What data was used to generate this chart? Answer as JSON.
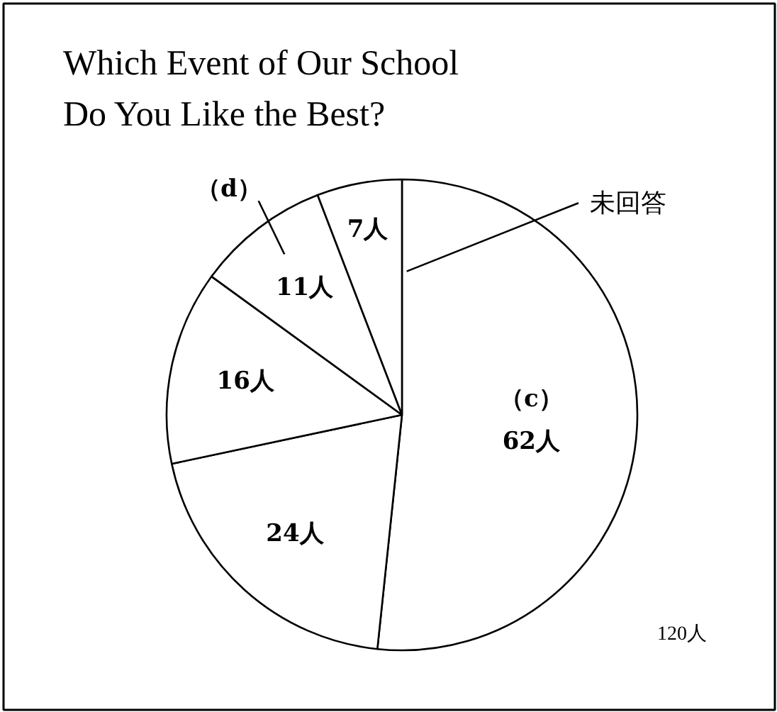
{
  "chart_data": {
    "type": "pie",
    "title": "Which Event of Our School\nDo You Like the Best?",
    "categories": [
      "（c）",
      null,
      null,
      "（d）",
      "未回答"
    ],
    "values": [
      62,
      24,
      16,
      11,
      7
    ],
    "value_labels": [
      "62人",
      "24人",
      "16人",
      "11人",
      "7人"
    ],
    "colors": [
      "#ffffff",
      "#ffffff",
      "#ffffff",
      "#ffffff",
      "#ffffff"
    ],
    "annotations": [
      "120人"
    ]
  }
}
